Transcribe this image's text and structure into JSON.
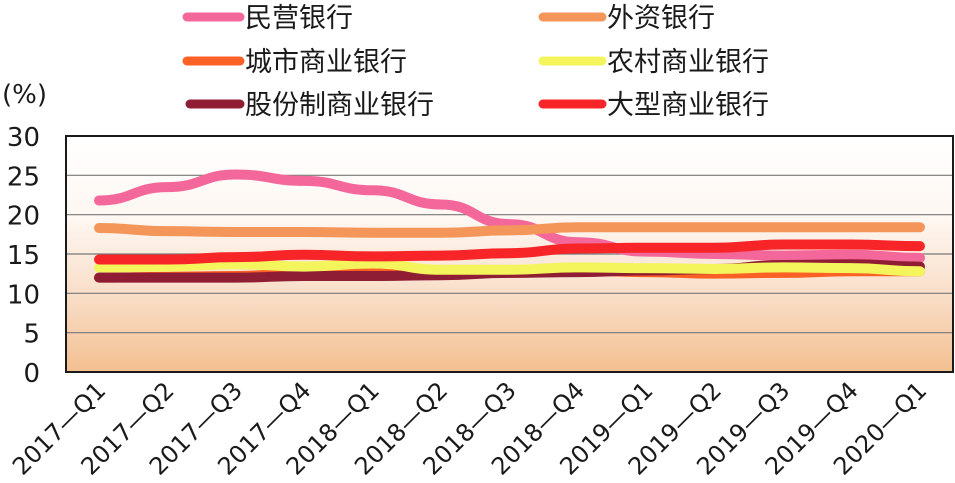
{
  "chart_data": {
    "type": "line",
    "title": "",
    "xlabel": "",
    "ylabel": "(%)",
    "ylim": [
      0,
      30
    ],
    "yticks": [
      0,
      5,
      10,
      15,
      20,
      25,
      30
    ],
    "grid": true,
    "legend_position": "top",
    "categories": [
      "2017—Q1",
      "2017—Q2",
      "2017—Q3",
      "2017—Q4",
      "2018—Q1",
      "2018—Q2",
      "2018—Q3",
      "2018—Q4",
      "2019—Q1",
      "2019—Q2",
      "2019—Q3",
      "2019—Q4",
      "2020—Q1"
    ],
    "series": [
      {
        "name": "民营银行",
        "color": "#f4679a",
        "values": [
          21.8,
          23.5,
          25.1,
          24.3,
          23.1,
          21.3,
          18.8,
          16.5,
          15.3,
          15.0,
          14.8,
          14.9,
          14.5
        ]
      },
      {
        "name": "外资银行",
        "color": "#f4965a",
        "values": [
          18.3,
          17.9,
          17.8,
          17.8,
          17.7,
          17.7,
          18.0,
          18.4,
          18.4,
          18.4,
          18.4,
          18.4,
          18.4
        ]
      },
      {
        "name": "城市商业银行",
        "color": "#fb6124",
        "values": [
          12.0,
          12.1,
          12.2,
          12.6,
          13.0,
          12.5,
          12.6,
          12.9,
          12.7,
          12.5,
          12.6,
          12.8,
          12.8
        ]
      },
      {
        "name": "农村商业银行",
        "color": "#f4f55c",
        "values": [
          13.3,
          13.4,
          13.7,
          13.4,
          13.8,
          13.0,
          13.0,
          13.3,
          13.2,
          13.1,
          13.3,
          13.2,
          12.8
        ]
      },
      {
        "name": "股份制商业银行",
        "color": "#8f1d33",
        "values": [
          12.0,
          12.0,
          12.0,
          12.2,
          12.2,
          12.3,
          12.6,
          12.7,
          12.9,
          13.1,
          13.6,
          13.7,
          13.4
        ]
      },
      {
        "name": "大型商业银行",
        "color": "#f72428",
        "values": [
          14.3,
          14.3,
          14.6,
          14.9,
          14.7,
          14.8,
          15.1,
          15.7,
          15.8,
          15.8,
          16.2,
          16.2,
          16.0
        ]
      }
    ]
  },
  "legend": {
    "items": [
      {
        "label": "民营银行",
        "color": "#f4679a"
      },
      {
        "label": "外资银行",
        "color": "#f4965a"
      },
      {
        "label": "城市商业银行",
        "color": "#fb6124"
      },
      {
        "label": "农村商业银行",
        "color": "#f4f55c"
      },
      {
        "label": "股份制商业银行",
        "color": "#8f1d33"
      },
      {
        "label": "大型商业银行",
        "color": "#f72428"
      }
    ]
  },
  "axis": {
    "unit": "(%)"
  },
  "style": {
    "plot_bg_top": "#ffffff",
    "plot_bg_bottom": "#f3bf90",
    "gridline": "#777777",
    "frame": "#1a1a1a"
  }
}
